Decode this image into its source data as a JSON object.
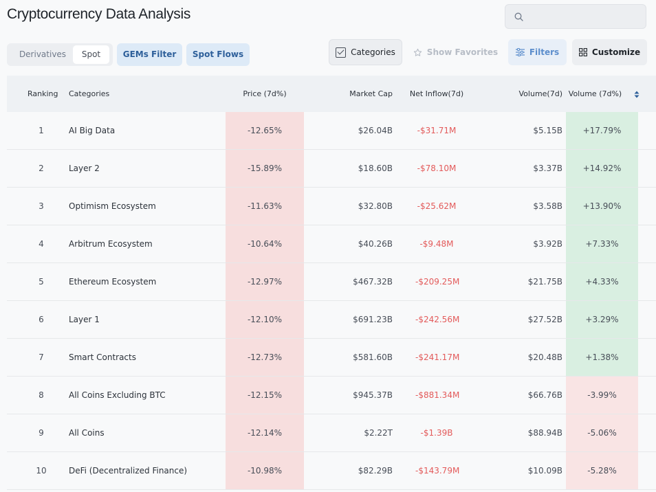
{
  "header": {
    "title": "Cryptocurrency Data Analysis"
  },
  "search": {
    "placeholder": ""
  },
  "tabs": {
    "derivatives": "Derivatives",
    "spot": "Spot"
  },
  "pills": {
    "gems": "GEMs Filter",
    "flows": "Spot Flows"
  },
  "toolbar": {
    "categories": "Categories",
    "show_favorites": "Show Favorites",
    "filters": "Filters",
    "customize": "Customize"
  },
  "colors": {
    "negative_text": "#e35a5a",
    "negative_bg": "#f7dede",
    "positive_bg": "#d9efe1",
    "accent": "#2d5f9a"
  },
  "table": {
    "columns": {
      "ranking": "Ranking",
      "categories": "Categories",
      "price": "Price (7d%)",
      "market_cap": "Market Cap",
      "net_inflow": "Net Inflow(7d)",
      "volume": "Volume(7d)",
      "volume_pct": "Volume (7d%)"
    },
    "rows": [
      {
        "rank": "1",
        "category": "AI Big Data",
        "price": "-12.65%",
        "mcap": "$26.04B",
        "inflow": "-$31.71M",
        "volume": "$5.15B",
        "vol_pct": "+17.79%",
        "vol_sign": "pos"
      },
      {
        "rank": "2",
        "category": "Layer 2",
        "price": "-15.89%",
        "mcap": "$18.60B",
        "inflow": "-$78.10M",
        "volume": "$3.37B",
        "vol_pct": "+14.92%",
        "vol_sign": "pos"
      },
      {
        "rank": "3",
        "category": "Optimism Ecosystem",
        "price": "-11.63%",
        "mcap": "$32.80B",
        "inflow": "-$25.62M",
        "volume": "$3.58B",
        "vol_pct": "+13.90%",
        "vol_sign": "pos"
      },
      {
        "rank": "4",
        "category": "Arbitrum Ecosystem",
        "price": "-10.64%",
        "mcap": "$40.26B",
        "inflow": "-$9.48M",
        "volume": "$3.92B",
        "vol_pct": "+7.33%",
        "vol_sign": "pos"
      },
      {
        "rank": "5",
        "category": "Ethereum Ecosystem",
        "price": "-12.97%",
        "mcap": "$467.32B",
        "inflow": "-$209.25M",
        "volume": "$21.75B",
        "vol_pct": "+4.33%",
        "vol_sign": "pos"
      },
      {
        "rank": "6",
        "category": "Layer 1",
        "price": "-12.10%",
        "mcap": "$691.23B",
        "inflow": "-$242.56M",
        "volume": "$27.52B",
        "vol_pct": "+3.29%",
        "vol_sign": "pos"
      },
      {
        "rank": "7",
        "category": "Smart Contracts",
        "price": "-12.73%",
        "mcap": "$581.60B",
        "inflow": "-$241.17M",
        "volume": "$20.48B",
        "vol_pct": "+1.38%",
        "vol_sign": "pos"
      },
      {
        "rank": "8",
        "category": "All Coins Excluding BTC",
        "price": "-12.15%",
        "mcap": "$945.37B",
        "inflow": "-$881.34M",
        "volume": "$66.76B",
        "vol_pct": "-3.99%",
        "vol_sign": "neg"
      },
      {
        "rank": "9",
        "category": "All Coins",
        "price": "-12.14%",
        "mcap": "$2.22T",
        "inflow": "-$1.39B",
        "volume": "$88.94B",
        "vol_pct": "-5.06%",
        "vol_sign": "neg"
      },
      {
        "rank": "10",
        "category": "DeFi (Decentralized Finance)",
        "price": "-10.98%",
        "mcap": "$82.29B",
        "inflow": "-$143.79M",
        "volume": "$10.09B",
        "vol_pct": "-5.28%",
        "vol_sign": "neg"
      }
    ]
  }
}
